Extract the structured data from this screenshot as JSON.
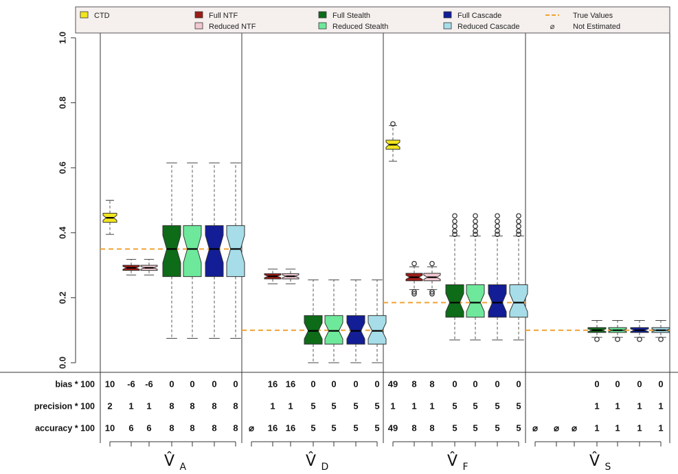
{
  "chart_data": {
    "type": "box",
    "ylim": [
      0,
      1
    ],
    "yticks": [
      "0.0",
      "0.2",
      "0.4",
      "0.6",
      "0.8",
      "1.0"
    ],
    "ytick_values": [
      0,
      0.2,
      0.4,
      0.6,
      0.8,
      1.0
    ],
    "legend_placement": "top",
    "legend": [
      {
        "name": "CTD",
        "color": "#f2e41e",
        "key": "ctd"
      },
      {
        "name": "Full NTF",
        "color": "#9c1c16",
        "key": "fntf"
      },
      {
        "name": "Reduced NTF",
        "color": "#f2c8d0",
        "key": "rntf"
      },
      {
        "name": "Full Stealth",
        "color": "#0e6b18",
        "key": "fst"
      },
      {
        "name": "Reduced Stealth",
        "color": "#6ee89a",
        "key": "rst"
      },
      {
        "name": "Full Cascade",
        "color": "#121d96",
        "key": "fca"
      },
      {
        "name": "Reduced Cascade",
        "color": "#a6dde8",
        "key": "rca"
      },
      {
        "name": "True Values",
        "color": "#f0a030",
        "key": "true"
      },
      {
        "name": "Not Estimated",
        "color": "#111111",
        "key": "ne"
      }
    ],
    "not_estimated_symbol": "⌀",
    "groups": [
      {
        "label_main": "V̂",
        "label_sub": "A",
        "true_value": 0.35,
        "boxes": [
          {
            "series": "ctd",
            "whisker_low": 0.395,
            "q1": 0.432,
            "median": 0.446,
            "q3": 0.46,
            "whisker_high": 0.5,
            "outliers": []
          },
          {
            "series": "fntf",
            "whisker_low": 0.27,
            "q1": 0.284,
            "median": 0.292,
            "q3": 0.3,
            "whisker_high": 0.318,
            "outliers": []
          },
          {
            "series": "rntf",
            "whisker_low": 0.27,
            "q1": 0.284,
            "median": 0.292,
            "q3": 0.3,
            "whisker_high": 0.318,
            "outliers": []
          },
          {
            "series": "fst",
            "whisker_low": 0.075,
            "q1": 0.265,
            "median": 0.35,
            "q3": 0.422,
            "whisker_high": 0.615,
            "outliers": []
          },
          {
            "series": "rst",
            "whisker_low": 0.075,
            "q1": 0.265,
            "median": 0.35,
            "q3": 0.422,
            "whisker_high": 0.615,
            "outliers": []
          },
          {
            "series": "fca",
            "whisker_low": 0.075,
            "q1": 0.265,
            "median": 0.35,
            "q3": 0.422,
            "whisker_high": 0.615,
            "outliers": []
          },
          {
            "series": "rca",
            "whisker_low": 0.075,
            "q1": 0.265,
            "median": 0.35,
            "q3": 0.422,
            "whisker_high": 0.615,
            "outliers": []
          }
        ],
        "stats": {
          "bias": [
            "10",
            "-6",
            "-6",
            "0",
            "0",
            "0",
            "0"
          ],
          "precision": [
            "2",
            "1",
            "1",
            "8",
            "8",
            "8",
            "8"
          ],
          "accuracy": [
            "10",
            "6",
            "6",
            "8",
            "8",
            "8",
            "8"
          ]
        }
      },
      {
        "label_main": "V̂",
        "label_sub": "D",
        "true_value": 0.1,
        "boxes": [
          {
            "series": "ctd",
            "not_estimated": true
          },
          {
            "series": "fntf",
            "whisker_low": 0.243,
            "q1": 0.258,
            "median": 0.266,
            "q3": 0.274,
            "whisker_high": 0.288,
            "outliers": []
          },
          {
            "series": "rntf",
            "whisker_low": 0.243,
            "q1": 0.258,
            "median": 0.266,
            "q3": 0.274,
            "whisker_high": 0.288,
            "outliers": []
          },
          {
            "series": "fst",
            "whisker_low": 0.0,
            "q1": 0.057,
            "median": 0.098,
            "q3": 0.145,
            "whisker_high": 0.255,
            "outliers": []
          },
          {
            "series": "rst",
            "whisker_low": 0.0,
            "q1": 0.057,
            "median": 0.098,
            "q3": 0.145,
            "whisker_high": 0.255,
            "outliers": []
          },
          {
            "series": "fca",
            "whisker_low": 0.0,
            "q1": 0.057,
            "median": 0.098,
            "q3": 0.145,
            "whisker_high": 0.255,
            "outliers": []
          },
          {
            "series": "rca",
            "whisker_low": 0.0,
            "q1": 0.057,
            "median": 0.098,
            "q3": 0.145,
            "whisker_high": 0.255,
            "outliers": []
          }
        ],
        "stats": {
          "bias": [
            "",
            "16",
            "16",
            "0",
            "0",
            "0",
            "0"
          ],
          "precision": [
            "",
            "1",
            "1",
            "5",
            "5",
            "5",
            "5"
          ],
          "accuracy": [
            "⌀",
            "16",
            "16",
            "5",
            "5",
            "5",
            "5"
          ]
        }
      },
      {
        "label_main": "V̂",
        "label_sub": "F",
        "true_value": 0.185,
        "boxes": [
          {
            "series": "ctd",
            "whisker_low": 0.62,
            "q1": 0.657,
            "median": 0.671,
            "q3": 0.685,
            "whisker_high": 0.73,
            "outliers": [
              0.735
            ]
          },
          {
            "series": "fntf",
            "whisker_low": 0.225,
            "q1": 0.252,
            "median": 0.263,
            "q3": 0.275,
            "whisker_high": 0.295,
            "outliers": [
              0.305,
              0.218,
              0.212
            ]
          },
          {
            "series": "rntf",
            "whisker_low": 0.225,
            "q1": 0.252,
            "median": 0.263,
            "q3": 0.275,
            "whisker_high": 0.295,
            "outliers": [
              0.305,
              0.218,
              0.212
            ]
          },
          {
            "series": "fst",
            "whisker_low": 0.07,
            "q1": 0.14,
            "median": 0.185,
            "q3": 0.24,
            "whisker_high": 0.39,
            "outliers": [
              0.395,
              0.405,
              0.42,
              0.435,
              0.452
            ]
          },
          {
            "series": "rst",
            "whisker_low": 0.07,
            "q1": 0.14,
            "median": 0.185,
            "q3": 0.24,
            "whisker_high": 0.39,
            "outliers": [
              0.395,
              0.405,
              0.42,
              0.435,
              0.452
            ]
          },
          {
            "series": "fca",
            "whisker_low": 0.07,
            "q1": 0.14,
            "median": 0.185,
            "q3": 0.24,
            "whisker_high": 0.39,
            "outliers": [
              0.395,
              0.405,
              0.42,
              0.435,
              0.452
            ]
          },
          {
            "series": "rca",
            "whisker_low": 0.07,
            "q1": 0.14,
            "median": 0.185,
            "q3": 0.24,
            "whisker_high": 0.39,
            "outliers": [
              0.395,
              0.405,
              0.42,
              0.435,
              0.452
            ]
          }
        ],
        "stats": {
          "bias": [
            "49",
            "8",
            "8",
            "0",
            "0",
            "0",
            "0"
          ],
          "precision": [
            "1",
            "1",
            "1",
            "5",
            "5",
            "5",
            "5"
          ],
          "accuracy": [
            "49",
            "8",
            "8",
            "5",
            "5",
            "5",
            "5"
          ]
        }
      },
      {
        "label_main": "V̂",
        "label_sub": "S",
        "true_value": 0.1,
        "boxes": [
          {
            "series": "ctd",
            "not_estimated": true
          },
          {
            "series": "fntf",
            "not_estimated": true
          },
          {
            "series": "rntf",
            "not_estimated": true
          },
          {
            "series": "fst",
            "whisker_low": 0.078,
            "q1": 0.093,
            "median": 0.1,
            "q3": 0.108,
            "whisker_high": 0.13,
            "outliers": [
              0.072
            ]
          },
          {
            "series": "rst",
            "whisker_low": 0.078,
            "q1": 0.093,
            "median": 0.1,
            "q3": 0.108,
            "whisker_high": 0.13,
            "outliers": [
              0.072
            ]
          },
          {
            "series": "fca",
            "whisker_low": 0.078,
            "q1": 0.093,
            "median": 0.1,
            "q3": 0.108,
            "whisker_high": 0.13,
            "outliers": [
              0.072
            ]
          },
          {
            "series": "rca",
            "whisker_low": 0.078,
            "q1": 0.093,
            "median": 0.1,
            "q3": 0.108,
            "whisker_high": 0.13,
            "outliers": [
              0.072
            ]
          }
        ],
        "stats": {
          "bias": [
            "",
            "",
            "",
            "0",
            "0",
            "0",
            "0"
          ],
          "precision": [
            "",
            "",
            "",
            "1",
            "1",
            "1",
            "1"
          ],
          "accuracy": [
            "⌀",
            "⌀",
            "⌀",
            "1",
            "1",
            "1",
            "1"
          ]
        }
      }
    ],
    "stat_rows": [
      {
        "key": "bias",
        "label": "bias * 100"
      },
      {
        "key": "precision",
        "label": "precision * 100"
      },
      {
        "key": "accuracy",
        "label": "accuracy * 100"
      }
    ]
  }
}
